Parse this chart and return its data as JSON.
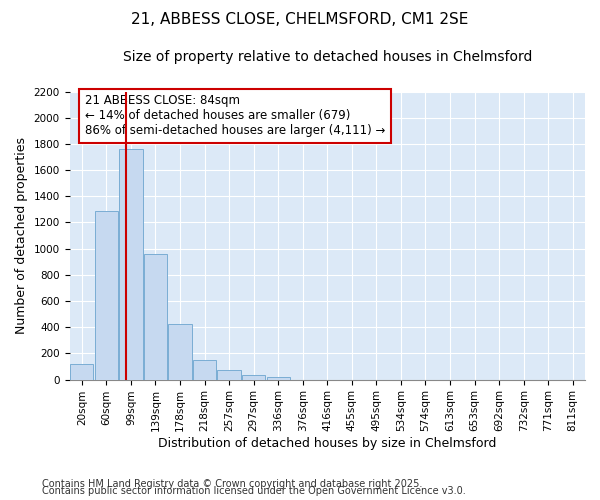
{
  "title_line1": "21, ABBESS CLOSE, CHELMSFORD, CM1 2SE",
  "title_line2": "Size of property relative to detached houses in Chelmsford",
  "xlabel": "Distribution of detached houses by size in Chelmsford",
  "ylabel": "Number of detached properties",
  "bin_labels": [
    "20sqm",
    "60sqm",
    "99sqm",
    "139sqm",
    "178sqm",
    "218sqm",
    "257sqm",
    "297sqm",
    "336sqm",
    "376sqm",
    "416sqm",
    "455sqm",
    "495sqm",
    "534sqm",
    "574sqm",
    "613sqm",
    "653sqm",
    "692sqm",
    "732sqm",
    "771sqm",
    "811sqm"
  ],
  "bar_values": [
    120,
    1285,
    1760,
    960,
    425,
    150,
    75,
    35,
    20,
    0,
    0,
    0,
    0,
    0,
    0,
    0,
    0,
    0,
    0,
    0,
    0
  ],
  "bar_color": "#c6d9f0",
  "bar_edge_color": "#7aadd4",
  "bg_color": "#dce9f7",
  "grid_color": "#ffffff",
  "vline_color": "#cc0000",
  "vline_x_idx": 1.82,
  "annotation_text": "21 ABBESS CLOSE: 84sqm\n← 14% of detached houses are smaller (679)\n86% of semi-detached houses are larger (4,111) →",
  "annotation_box_color": "#ffffff",
  "annotation_box_edge": "#cc0000",
  "ylim": [
    0,
    2200
  ],
  "yticks": [
    0,
    200,
    400,
    600,
    800,
    1000,
    1200,
    1400,
    1600,
    1800,
    2000,
    2200
  ],
  "fig_bg": "#ffffff",
  "footnote1": "Contains HM Land Registry data © Crown copyright and database right 2025.",
  "footnote2": "Contains public sector information licensed under the Open Government Licence v3.0.",
  "title_fontsize": 11,
  "subtitle_fontsize": 10,
  "axis_label_fontsize": 9,
  "tick_fontsize": 7.5,
  "annotation_fontsize": 8.5,
  "footnote_fontsize": 7
}
